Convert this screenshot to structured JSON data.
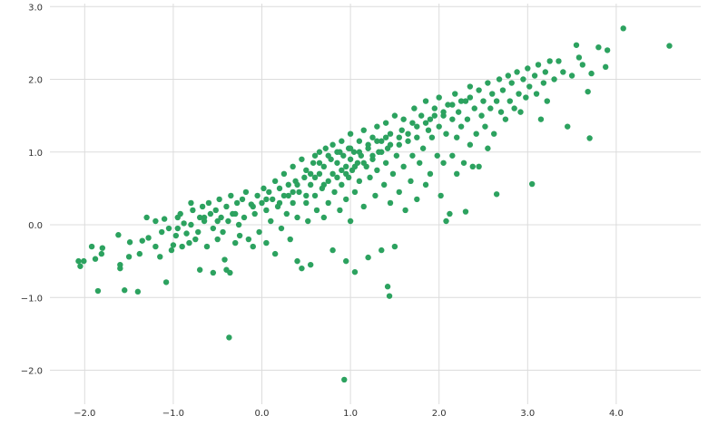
{
  "chart_data": {
    "type": "scatter",
    "title": "",
    "xlabel": "",
    "ylabel": "",
    "xlim": [
      -2.5,
      4.8
    ],
    "ylim": [
      -2.4,
      3.0
    ],
    "grid": true,
    "marker_color": "#2ca25f",
    "grid_color": "#dcdcdc",
    "x_ticks": [
      {
        "value": -2.0,
        "label": "−2.0"
      },
      {
        "value": -1.0,
        "label": "−1.0"
      },
      {
        "value": 0.0,
        "label": "0.0"
      },
      {
        "value": 1.0,
        "label": "1.0"
      },
      {
        "value": 2.0,
        "label": "2.0"
      },
      {
        "value": 3.0,
        "label": "3.0"
      },
      {
        "value": 4.0,
        "label": "4.0"
      }
    ],
    "y_ticks": [
      {
        "value": 3.0,
        "label": "3.0"
      },
      {
        "value": 2.0,
        "label": "2.0"
      },
      {
        "value": 1.0,
        "label": "1.0"
      },
      {
        "value": 0.0,
        "label": "0.0"
      },
      {
        "value": -1.0,
        "label": "−1.0"
      },
      {
        "value": -2.0,
        "label": "−2.0"
      }
    ],
    "series": [
      {
        "values": [
          [
            -2.07,
            -0.5
          ],
          [
            -2.05,
            -0.57
          ],
          [
            -2.01,
            -0.5
          ],
          [
            -1.92,
            -0.3
          ],
          [
            -1.88,
            -0.47
          ],
          [
            -1.85,
            -0.91
          ],
          [
            -1.81,
            -0.4
          ],
          [
            -1.8,
            -0.32
          ],
          [
            -1.62,
            -0.14
          ],
          [
            -1.6,
            -0.55
          ],
          [
            -1.6,
            -0.6
          ],
          [
            -1.55,
            -0.9
          ],
          [
            -1.5,
            -0.44
          ],
          [
            -1.49,
            -0.24
          ],
          [
            -1.4,
            -0.92
          ],
          [
            -1.38,
            -0.4
          ],
          [
            -1.35,
            -0.22
          ],
          [
            -1.3,
            0.1
          ],
          [
            -1.28,
            -0.18
          ],
          [
            -1.2,
            0.05
          ],
          [
            -1.15,
            -0.44
          ],
          [
            -1.13,
            -0.1
          ],
          [
            -1.1,
            0.08
          ],
          [
            -1.08,
            -0.79
          ],
          [
            -1.05,
            -0.05
          ],
          [
            -1.02,
            -0.35
          ],
          [
            -1.0,
            -0.28
          ],
          [
            -0.97,
            -0.15
          ],
          [
            -0.95,
            -0.05
          ],
          [
            -0.92,
            0.15
          ],
          [
            -0.9,
            -0.3
          ],
          [
            -0.88,
            0.02
          ],
          [
            -0.85,
            -0.12
          ],
          [
            -0.82,
            -0.25
          ],
          [
            -0.8,
            0.3
          ],
          [
            -0.78,
            0.2
          ],
          [
            -0.75,
            -0.2
          ],
          [
            -0.72,
            -0.1
          ],
          [
            -0.7,
            0.1
          ],
          [
            -0.7,
            -0.62
          ],
          [
            -0.67,
            0.25
          ],
          [
            -0.65,
            0.05
          ],
          [
            -0.62,
            -0.3
          ],
          [
            -0.6,
            0.3
          ],
          [
            -0.58,
            0.15
          ],
          [
            -0.55,
            -0.05
          ],
          [
            -0.55,
            -0.66
          ],
          [
            -0.52,
            0.2
          ],
          [
            -0.5,
            -0.2
          ],
          [
            -0.48,
            0.35
          ],
          [
            -0.46,
            0.1
          ],
          [
            -0.44,
            -0.1
          ],
          [
            -0.42,
            -0.48
          ],
          [
            -0.4,
            0.25
          ],
          [
            -0.4,
            -0.62
          ],
          [
            -0.38,
            0.05
          ],
          [
            -0.37,
            -1.55
          ],
          [
            -0.36,
            -0.66
          ],
          [
            -0.35,
            0.4
          ],
          [
            -0.33,
            0.15
          ],
          [
            -0.3,
            -0.25
          ],
          [
            -0.28,
            0.3
          ],
          [
            -0.26,
            0.0
          ],
          [
            -0.25,
            -0.15
          ],
          [
            -0.22,
            0.35
          ],
          [
            -0.2,
            0.1
          ],
          [
            -0.18,
            0.45
          ],
          [
            -0.15,
            -0.2
          ],
          [
            -0.12,
            0.28
          ],
          [
            -0.1,
            -0.3
          ],
          [
            -0.08,
            0.15
          ],
          [
            -0.05,
            0.4
          ],
          [
            -0.03,
            -0.1
          ],
          [
            0.0,
            0.3
          ],
          [
            0.02,
            0.5
          ],
          [
            0.05,
            0.2
          ],
          [
            0.05,
            -0.25
          ],
          [
            0.08,
            0.45
          ],
          [
            0.1,
            0.05
          ],
          [
            0.12,
            0.35
          ],
          [
            0.15,
            0.6
          ],
          [
            0.15,
            -0.4
          ],
          [
            0.18,
            0.25
          ],
          [
            0.2,
            0.5
          ],
          [
            0.22,
            -0.05
          ],
          [
            0.25,
            0.7
          ],
          [
            0.25,
            0.4
          ],
          [
            0.28,
            0.15
          ],
          [
            0.3,
            0.55
          ],
          [
            0.32,
            -0.2
          ],
          [
            0.35,
            0.8
          ],
          [
            0.35,
            0.3
          ],
          [
            0.38,
            0.6
          ],
          [
            0.4,
            0.1
          ],
          [
            0.4,
            -0.5
          ],
          [
            0.42,
            0.45
          ],
          [
            0.45,
            0.9
          ],
          [
            0.45,
            -0.6
          ],
          [
            0.48,
            0.65
          ],
          [
            0.5,
            0.3
          ],
          [
            0.5,
            0.75
          ],
          [
            0.52,
            0.05
          ],
          [
            0.55,
            0.55
          ],
          [
            0.55,
            -0.55
          ],
          [
            0.58,
            0.85
          ],
          [
            0.6,
            0.4
          ],
          [
            0.6,
            0.95
          ],
          [
            0.62,
            0.2
          ],
          [
            0.65,
            0.7
          ],
          [
            0.65,
            1.0
          ],
          [
            0.68,
            0.5
          ],
          [
            0.7,
            0.8
          ],
          [
            0.7,
            0.1
          ],
          [
            0.72,
            1.05
          ],
          [
            0.75,
            0.6
          ],
          [
            0.75,
            0.3
          ],
          [
            0.78,
            0.9
          ],
          [
            0.8,
            0.7
          ],
          [
            0.8,
            1.1
          ],
          [
            0.8,
            -0.35
          ],
          [
            0.82,
            0.45
          ],
          [
            0.85,
            0.85
          ],
          [
            0.85,
            1.0
          ],
          [
            0.88,
            0.2
          ],
          [
            0.9,
            0.75
          ],
          [
            0.9,
            1.15
          ],
          [
            0.9,
            0.55
          ],
          [
            0.92,
            0.95
          ],
          [
            0.95,
            0.35
          ],
          [
            0.95,
            0.8
          ],
          [
            0.95,
            -0.5
          ],
          [
            0.98,
            1.05
          ],
          [
            0.98,
            0.65
          ],
          [
            1.0,
            0.9
          ],
          [
            1.0,
            1.25
          ],
          [
            1.0,
            0.05
          ],
          [
            1.02,
            0.75
          ],
          [
            1.04,
            1.0
          ],
          [
            1.05,
            0.45
          ],
          [
            1.05,
            -0.65
          ],
          [
            1.08,
            0.85
          ],
          [
            1.1,
            1.15
          ],
          [
            1.1,
            0.6
          ],
          [
            1.12,
            0.95
          ],
          [
            1.15,
            1.3
          ],
          [
            1.15,
            0.25
          ],
          [
            1.18,
            0.8
          ],
          [
            1.2,
            1.05
          ],
          [
            1.2,
            -0.45
          ],
          [
            1.22,
            0.65
          ],
          [
            1.25,
            1.2
          ],
          [
            1.25,
            0.9
          ],
          [
            1.28,
            0.4
          ],
          [
            1.3,
            1.35
          ],
          [
            1.3,
            0.75
          ],
          [
            1.32,
            1.0
          ],
          [
            1.35,
            -0.35
          ],
          [
            1.35,
            1.15
          ],
          [
            1.38,
            0.55
          ],
          [
            1.4,
            1.4
          ],
          [
            1.4,
            0.85
          ],
          [
            1.42,
            -0.85
          ],
          [
            1.42,
            1.05
          ],
          [
            1.44,
            -0.98
          ],
          [
            1.45,
            0.3
          ],
          [
            1.45,
            1.25
          ],
          [
            1.48,
            0.7
          ],
          [
            1.5,
            1.5
          ],
          [
            1.5,
            -0.3
          ],
          [
            1.52,
            0.95
          ],
          [
            1.55,
            1.1
          ],
          [
            1.55,
            0.45
          ],
          [
            1.58,
            1.3
          ],
          [
            1.6,
            0.8
          ],
          [
            1.6,
            1.45
          ],
          [
            1.62,
            0.2
          ],
          [
            1.65,
            1.15
          ],
          [
            1.68,
            0.6
          ],
          [
            1.7,
            1.4
          ],
          [
            1.7,
            0.95
          ],
          [
            1.72,
            1.6
          ],
          [
            1.75,
            1.2
          ],
          [
            1.75,
            0.35
          ],
          [
            1.78,
            0.85
          ],
          [
            1.8,
            1.5
          ],
          [
            1.82,
            1.05
          ],
          [
            1.85,
            1.7
          ],
          [
            1.85,
            0.55
          ],
          [
            1.88,
            1.3
          ],
          [
            1.9,
            1.45
          ],
          [
            1.9,
            0.7
          ],
          [
            1.92,
            1.2
          ],
          [
            1.95,
            1.6
          ],
          [
            1.98,
            0.95
          ],
          [
            2.0,
            1.75
          ],
          [
            2.0,
            1.35
          ],
          [
            2.02,
            0.4
          ],
          [
            2.05,
            1.5
          ],
          [
            2.05,
            0.85
          ],
          [
            2.08,
            1.25
          ],
          [
            2.08,
            0.05
          ],
          [
            2.1,
            1.65
          ],
          [
            2.12,
            0.15
          ],
          [
            2.15,
            1.45
          ],
          [
            2.15,
            0.95
          ],
          [
            2.18,
            1.8
          ],
          [
            2.2,
            1.2
          ],
          [
            2.2,
            0.7
          ],
          [
            2.22,
            1.55
          ],
          [
            2.25,
            1.35
          ],
          [
            2.28,
            0.85
          ],
          [
            2.3,
            1.7
          ],
          [
            2.3,
            0.18
          ],
          [
            2.32,
            1.45
          ],
          [
            2.35,
            1.9
          ],
          [
            2.35,
            1.1
          ],
          [
            2.38,
            0.8
          ],
          [
            2.4,
            1.6
          ],
          [
            2.42,
            1.25
          ],
          [
            2.45,
            1.85
          ],
          [
            2.45,
            0.8
          ],
          [
            2.48,
            1.5
          ],
          [
            2.5,
            1.7
          ],
          [
            2.52,
            1.35
          ],
          [
            2.55,
            1.95
          ],
          [
            2.55,
            1.05
          ],
          [
            2.58,
            1.6
          ],
          [
            2.6,
            1.8
          ],
          [
            2.62,
            1.25
          ],
          [
            2.65,
            0.42
          ],
          [
            2.65,
            1.7
          ],
          [
            2.68,
            2.0
          ],
          [
            2.7,
            1.55
          ],
          [
            2.72,
            1.85
          ],
          [
            2.75,
            1.45
          ],
          [
            2.78,
            2.05
          ],
          [
            2.8,
            1.7
          ],
          [
            2.82,
            1.95
          ],
          [
            2.85,
            1.6
          ],
          [
            2.88,
            2.1
          ],
          [
            2.9,
            1.8
          ],
          [
            2.92,
            1.55
          ],
          [
            2.95,
            2.0
          ],
          [
            2.98,
            1.75
          ],
          [
            3.0,
            2.15
          ],
          [
            3.02,
            1.9
          ],
          [
            3.05,
            0.56
          ],
          [
            3.08,
            2.05
          ],
          [
            3.1,
            1.8
          ],
          [
            3.12,
            2.2
          ],
          [
            3.15,
            1.45
          ],
          [
            3.18,
            1.95
          ],
          [
            3.2,
            2.1
          ],
          [
            3.22,
            1.7
          ],
          [
            3.25,
            2.25
          ],
          [
            3.3,
            2.0
          ],
          [
            3.35,
            2.25
          ],
          [
            3.4,
            2.1
          ],
          [
            3.45,
            1.35
          ],
          [
            3.5,
            2.05
          ],
          [
            3.55,
            2.47
          ],
          [
            3.58,
            2.3
          ],
          [
            3.62,
            2.2
          ],
          [
            3.68,
            1.83
          ],
          [
            3.7,
            1.19
          ],
          [
            3.72,
            2.08
          ],
          [
            3.8,
            2.44
          ],
          [
            3.88,
            2.17
          ],
          [
            3.9,
            2.4
          ],
          [
            4.08,
            2.7
          ],
          [
            4.6,
            2.46
          ],
          [
            0.35,
            0.45
          ],
          [
            0.5,
            0.4
          ],
          [
            0.6,
            0.65
          ],
          [
            0.7,
            0.55
          ],
          [
            0.85,
            0.65
          ],
          [
            0.95,
            0.7
          ],
          [
            1.05,
            0.8
          ],
          [
            1.15,
            0.85
          ],
          [
            1.25,
            0.95
          ],
          [
            1.35,
            1.0
          ],
          [
            1.45,
            1.1
          ],
          [
            1.55,
            1.2
          ],
          [
            1.65,
            1.25
          ],
          [
            1.75,
            1.35
          ],
          [
            1.85,
            1.4
          ],
          [
            1.95,
            1.5
          ],
          [
            2.05,
            1.55
          ],
          [
            2.15,
            1.65
          ],
          [
            2.25,
            1.7
          ],
          [
            2.35,
            1.75
          ],
          [
            0.65,
            0.85
          ],
          [
            0.75,
            0.95
          ],
          [
            0.88,
            1.0
          ],
          [
            1.0,
            1.05
          ],
          [
            1.1,
            1.0
          ],
          [
            1.2,
            1.1
          ],
          [
            1.3,
            1.15
          ],
          [
            1.4,
            1.2
          ],
          [
            0.4,
            0.55
          ],
          [
            0.55,
            0.7
          ],
          [
            -0.1,
            0.25
          ],
          [
            0.05,
            0.35
          ],
          [
            0.2,
            0.3
          ],
          [
            0.3,
            0.4
          ],
          [
            -0.3,
            0.15
          ],
          [
            -0.5,
            0.05
          ],
          [
            -0.65,
            0.1
          ],
          [
            -0.8,
            0.0
          ],
          [
            -0.95,
            0.1
          ],
          [
            -1.2,
            -0.3
          ],
          [
            0.93,
            -2.13
          ]
        ]
      }
    ]
  }
}
